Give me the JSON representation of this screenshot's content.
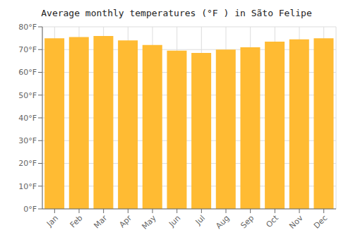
{
  "chart_data": {
    "type": "bar",
    "title": "Average monthly temperatures (°F ) in Sãto Felipe",
    "categories": [
      "Jan",
      "Feb",
      "Mar",
      "Apr",
      "May",
      "Jun",
      "Jul",
      "Aug",
      "Sep",
      "Oct",
      "Nov",
      "Dec"
    ],
    "values": [
      75,
      75.5,
      76,
      74,
      72,
      69.5,
      68.5,
      70,
      71,
      73.5,
      74.5,
      75
    ],
    "color": "#FFBB33",
    "ylim": [
      0,
      80
    ],
    "yticks": [
      {
        "value": 0,
        "label": "0°F"
      },
      {
        "value": 10,
        "label": "10°F"
      },
      {
        "value": 20,
        "label": "20°F"
      },
      {
        "value": 30,
        "label": "30°F"
      },
      {
        "value": 40,
        "label": "40°F"
      },
      {
        "value": 50,
        "label": "50°F"
      },
      {
        "value": 60,
        "label": "60°F"
      },
      {
        "value": 70,
        "label": "70°F"
      },
      {
        "value": 80,
        "label": "80°F"
      }
    ],
    "grid": true
  }
}
